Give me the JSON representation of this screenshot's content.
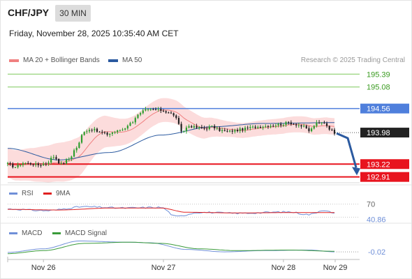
{
  "header": {
    "title": "CHF/JPY",
    "timeframe": "30 MIN",
    "datetime": "Friday, November 28, 2025 10:35:40 AM CET"
  },
  "legend": {
    "ma20_label": "MA 20 + Bollinger Bands",
    "ma50_label": "MA 50",
    "rsi_label": "RSI",
    "rsi_ma_label": "9MA",
    "macd_label": "MACD",
    "macd_signal_label": "MACD Signal"
  },
  "credit": "Research © 2025 Trading Central",
  "colors": {
    "ma20": "#f08080",
    "ma50": "#2b5aa0",
    "bollinger_fill": "#fcd6d6",
    "resistance_blue": "#4f7fdc",
    "resistance_green": "#7dc85a",
    "support_red": "#e8141e",
    "candle_up": "#2e9d2e",
    "candle_down": "#222222",
    "arrow": "#2b5aa0",
    "rsi": "#6f8fd8",
    "rsi_ma": "#e02020",
    "macd": "#6f8fd8",
    "macd_signal": "#3a9b3a"
  },
  "chart_data": [
    {
      "type": "candlestick",
      "title": "CHF/JPY",
      "ylim": [
        192.77,
        195.63
      ],
      "x_ticks": [
        "Nov 26",
        "Nov 27",
        "Nov 28",
        "Nov 29"
      ],
      "levels": [
        {
          "value": 195.39,
          "label": "195.39",
          "style": "resistance-green"
        },
        {
          "value": 195.08,
          "label": "195.08",
          "style": "resistance-green"
        },
        {
          "value": 194.56,
          "label": "194.56",
          "style": "pivot-blue"
        },
        {
          "value": 193.98,
          "label": "193.98",
          "style": "last-price"
        },
        {
          "value": 193.22,
          "label": "193.22",
          "style": "support-red"
        },
        {
          "value": 192.91,
          "label": "192.91",
          "style": "support-red"
        }
      ],
      "close_anchors": [
        [
          0,
          193.22
        ],
        [
          3,
          193.15
        ],
        [
          6,
          193.25
        ],
        [
          9,
          193.23
        ],
        [
          12,
          193.2
        ],
        [
          15,
          193.24
        ],
        [
          18,
          193.4
        ],
        [
          21,
          193.22
        ],
        [
          24,
          193.35
        ],
        [
          27,
          193.62
        ],
        [
          30,
          194.02
        ],
        [
          33,
          194.06
        ],
        [
          36,
          193.99
        ],
        [
          39,
          193.94
        ],
        [
          42,
          194.0
        ],
        [
          45,
          194.06
        ],
        [
          48,
          194.2
        ],
        [
          51,
          194.4
        ],
        [
          54,
          194.52
        ],
        [
          57,
          194.54
        ],
        [
          60,
          194.52
        ],
        [
          63,
          194.47
        ],
        [
          66,
          194.35
        ],
        [
          68,
          193.98
        ],
        [
          71,
          194.14
        ],
        [
          74,
          194.1
        ],
        [
          77,
          194.08
        ],
        [
          80,
          194.12
        ],
        [
          83,
          194.04
        ],
        [
          86,
          194.0
        ],
        [
          89,
          194.03
        ],
        [
          92,
          194.06
        ],
        [
          95,
          194.1
        ],
        [
          98,
          194.12
        ],
        [
          101,
          194.14
        ],
        [
          104,
          194.16
        ],
        [
          107,
          194.18
        ],
        [
          110,
          194.22
        ],
        [
          113,
          194.18
        ],
        [
          116,
          194.12
        ],
        [
          118,
          194.02
        ],
        [
          121,
          194.2
        ],
        [
          124,
          194.22
        ],
        [
          126,
          194.08
        ],
        [
          128,
          193.98
        ]
      ],
      "ma50_anchors": [
        [
          0,
          193.6
        ],
        [
          20,
          193.32
        ],
        [
          40,
          193.5
        ],
        [
          60,
          193.92
        ],
        [
          80,
          194.12
        ],
        [
          100,
          194.2
        ],
        [
          128,
          194.22
        ]
      ],
      "bollinger_width": [
        [
          0,
          0.36
        ],
        [
          25,
          0.48
        ],
        [
          50,
          0.3
        ],
        [
          70,
          0.28
        ],
        [
          90,
          0.18
        ],
        [
          128,
          0.2
        ]
      ]
    },
    {
      "type": "line",
      "title": "RSI",
      "y_ticks": [
        70,
        40.86
      ],
      "last_value": 40.86,
      "series": [
        {
          "name": "RSI",
          "anchors": [
            [
              0,
              55
            ],
            [
              15,
              50
            ],
            [
              30,
              62
            ],
            [
              45,
              58
            ],
            [
              60,
              60
            ],
            [
              66,
              32
            ],
            [
              75,
              45
            ],
            [
              90,
              42
            ],
            [
              110,
              46
            ],
            [
              118,
              38
            ],
            [
              124,
              52
            ],
            [
              128,
              40.86
            ]
          ]
        },
        {
          "name": "9MA",
          "anchors": [
            [
              0,
              54
            ],
            [
              20,
              52
            ],
            [
              40,
              58
            ],
            [
              60,
              58
            ],
            [
              70,
              45
            ],
            [
              90,
              43
            ],
            [
              110,
              44
            ],
            [
              128,
              44
            ]
          ]
        }
      ]
    },
    {
      "type": "line",
      "title": "MACD",
      "y_ticks": [
        -0.02
      ],
      "last_value": -0.02,
      "series": [
        {
          "name": "MACD",
          "anchors": [
            [
              0,
              -0.03
            ],
            [
              14,
              0.03
            ],
            [
              28,
              0.16
            ],
            [
              46,
              0.14
            ],
            [
              56,
              0.13
            ],
            [
              70,
              0.02
            ],
            [
              85,
              -0.02
            ],
            [
              100,
              0.0
            ],
            [
              118,
              0.01
            ],
            [
              128,
              -0.02
            ]
          ]
        },
        {
          "name": "MACD Signal",
          "anchors": [
            [
              0,
              -0.05
            ],
            [
              14,
              0.0
            ],
            [
              30,
              0.12
            ],
            [
              48,
              0.14
            ],
            [
              60,
              0.12
            ],
            [
              75,
              0.03
            ],
            [
              90,
              0.0
            ],
            [
              110,
              0.01
            ],
            [
              128,
              -0.01
            ]
          ]
        }
      ]
    }
  ]
}
